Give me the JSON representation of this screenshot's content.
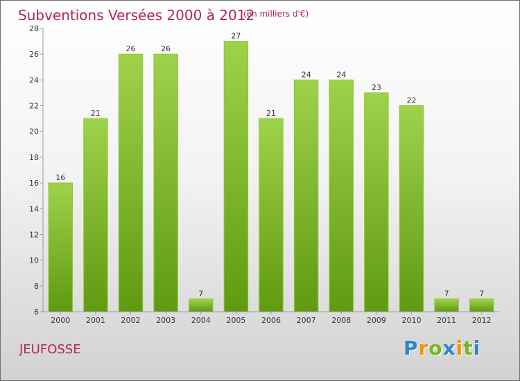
{
  "chart_data": {
    "type": "bar",
    "title": "Subventions Versées 2000 à 2012",
    "subtitle": "(en milliers d'€)",
    "categories": [
      "2000",
      "2001",
      "2002",
      "2003",
      "2004",
      "2005",
      "2006",
      "2007",
      "2008",
      "2009",
      "2010",
      "2011",
      "2012"
    ],
    "values": [
      16,
      21,
      26,
      26,
      7,
      27,
      21,
      24,
      24,
      23,
      22,
      7,
      7
    ],
    "data_labels": [
      "16",
      "21",
      "26",
      "26",
      "7",
      "27",
      "21",
      "24",
      "24",
      "23",
      "22",
      "7",
      "7"
    ],
    "yticks": [
      "6",
      "8",
      "10",
      "12",
      "14",
      "16",
      "18",
      "20",
      "22",
      "24",
      "26",
      "28"
    ],
    "ylim": [
      6,
      28
    ],
    "grid": false,
    "bar_color": "#7ab51f"
  },
  "place": "JEUFOSSE",
  "logo": {
    "text": "Proxiti",
    "letters": [
      {
        "ch": "P",
        "color": "#2e86c8"
      },
      {
        "ch": "r",
        "color": "#f29300"
      },
      {
        "ch": "o",
        "color": "#7ab51f"
      },
      {
        "ch": "x",
        "color": "#2e86c8"
      },
      {
        "ch": "i",
        "color": "#f29300"
      },
      {
        "ch": "t",
        "color": "#7ab51f"
      },
      {
        "ch": "i",
        "color": "#2e86c8"
      }
    ]
  }
}
